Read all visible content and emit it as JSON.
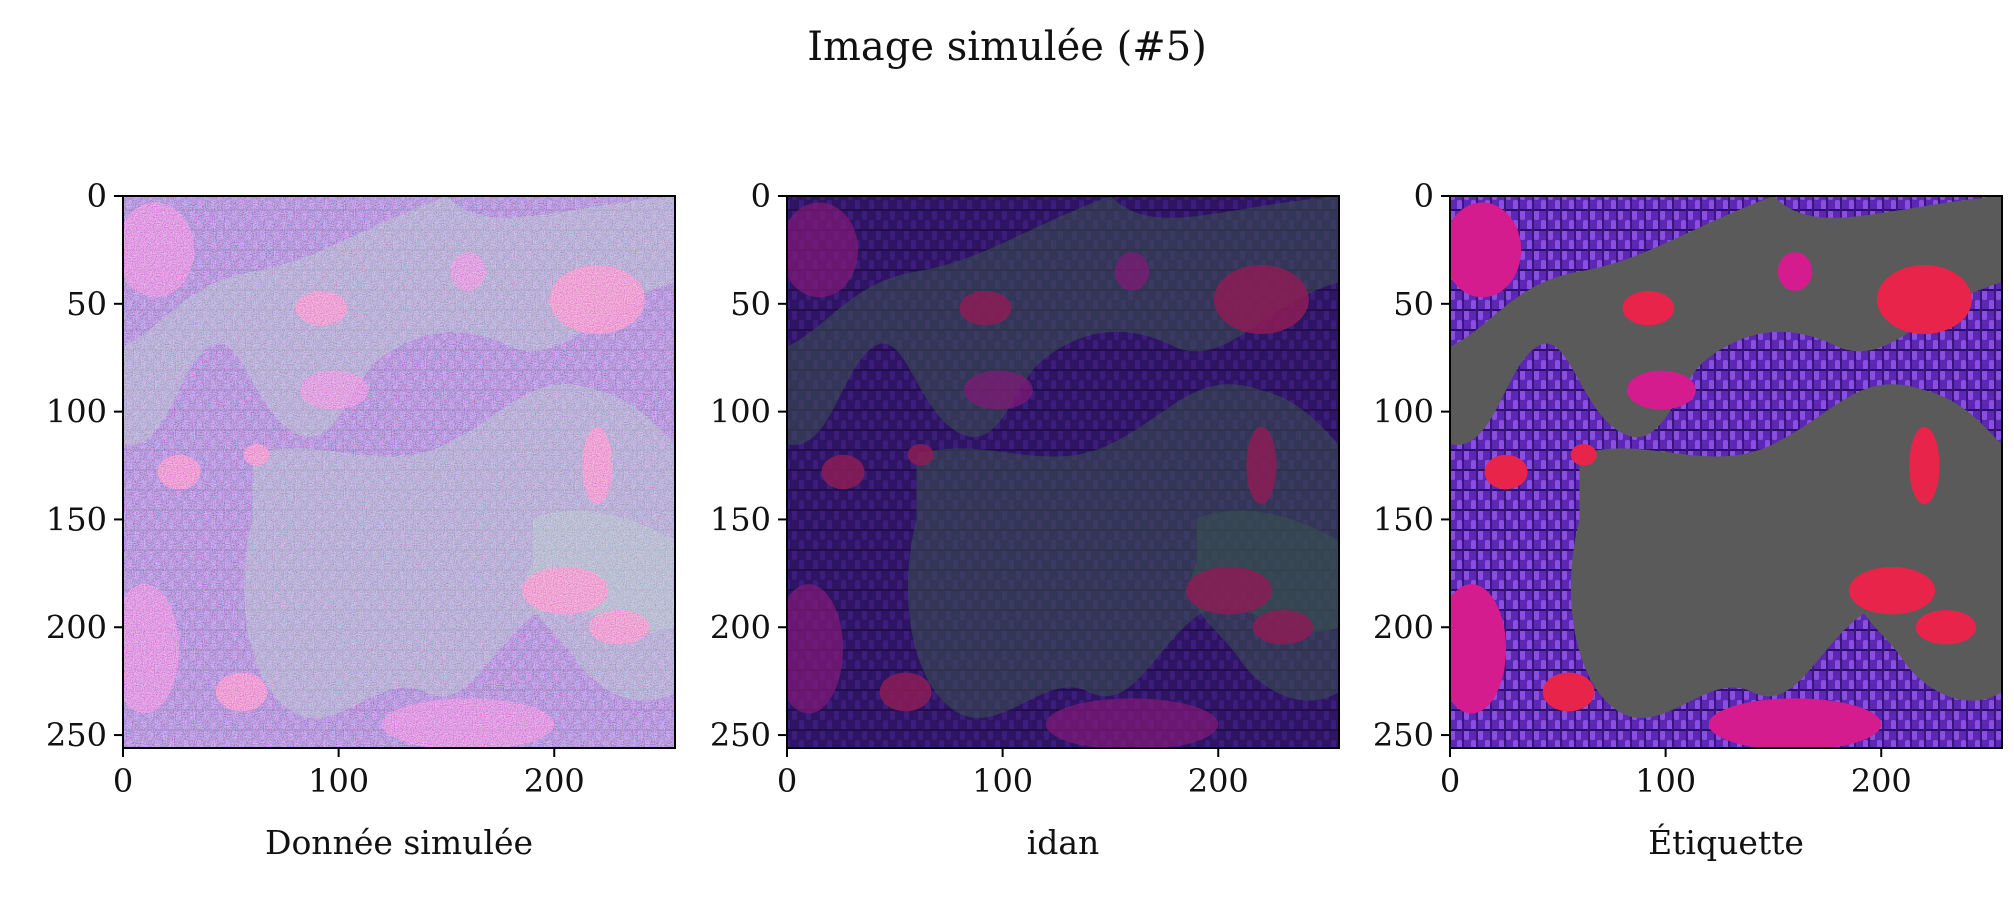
{
  "figure": {
    "title": "Image simulée (#5)"
  },
  "chart_data": [
    {
      "type": "heatmap",
      "xlabel": "Donnée simulée",
      "ylabel": "",
      "xlim": [
        0,
        256
      ],
      "ylim": [
        256,
        0
      ],
      "x_ticks": [
        0,
        100,
        200
      ],
      "y_ticks": [
        0,
        50,
        100,
        150,
        200,
        250
      ],
      "style": "noisy"
    },
    {
      "type": "heatmap",
      "xlabel": "idan",
      "ylabel": "",
      "xlim": [
        0,
        256
      ],
      "ylim": [
        256,
        0
      ],
      "x_ticks": [
        0,
        100,
        200
      ],
      "y_ticks": [
        0,
        50,
        100,
        150,
        200,
        250
      ],
      "style": "denoised"
    },
    {
      "type": "heatmap",
      "xlabel": "Étiquette",
      "ylabel": "",
      "xlim": [
        0,
        256
      ],
      "ylim": [
        256,
        0
      ],
      "x_ticks": [
        0,
        100,
        200
      ],
      "y_ticks": [
        0,
        50,
        100,
        150,
        200,
        250
      ],
      "style": "clean"
    }
  ],
  "colors": {
    "background_weave": "#6a2fc9",
    "leaf": "#5a5a5a",
    "red_patch": "#e8244a",
    "magenta_patch": "#d41c8f",
    "noise_green": "#3f8f3a"
  }
}
